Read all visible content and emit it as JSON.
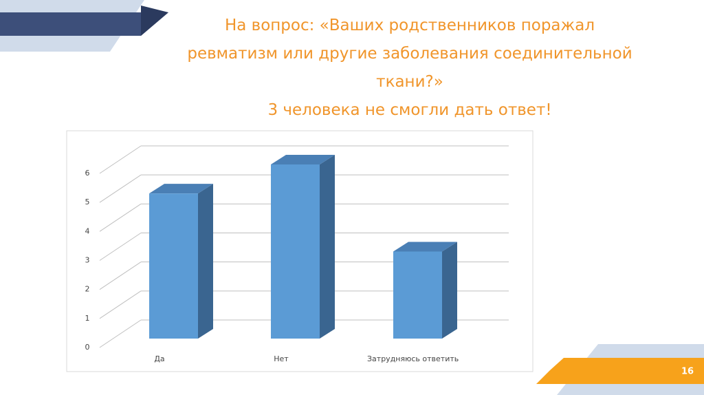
{
  "chart_data": {
    "type": "bar3d",
    "title": [
      "На вопрос: «Ваших родственников поражал",
      "ревматизм или другие заболевания соединительной",
      "ткани?»"
    ],
    "subtitle": "3 человека не смогли дать ответ!",
    "categories": [
      "Да",
      "Нет",
      "Затрудняюсь ответить"
    ],
    "values": [
      5,
      6,
      3
    ],
    "color": "#5b9bd5",
    "ylim": [
      0,
      6
    ],
    "yticks": [
      0,
      1,
      2,
      3,
      4,
      5,
      6
    ],
    "grid": true
  },
  "page_number": 16
}
